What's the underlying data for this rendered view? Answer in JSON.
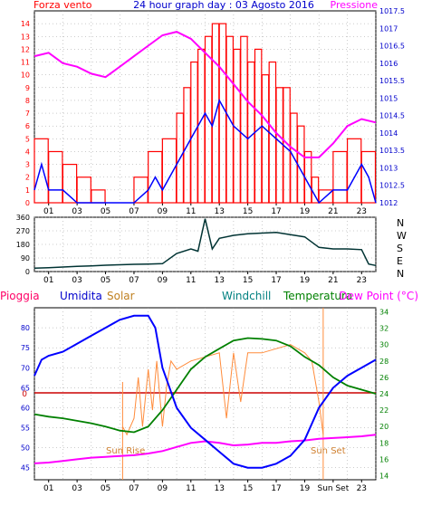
{
  "colors": {
    "wind": "#ff0000",
    "gust": "#0000ff",
    "pressure": "#ff00ff",
    "direction": "#003333",
    "humidity": "#0000ff",
    "solar": "#ff8c3c",
    "windchill": "#008080",
    "temperature": "#008000",
    "dewpoint": "#ff00ff",
    "rain": "#cc0000",
    "rain_label": "#ff0066",
    "frame": "#000000",
    "grid": "#999999",
    "axis_left": "#ff0000",
    "axis_right": "#0000cc"
  },
  "chart_data": [
    {
      "type": "bar",
      "title": "24 hour graph day : 03 Agosto 2016",
      "left_label": "Forza vento",
      "right_label": "Pressione",
      "yleft_ticks": [
        "0",
        "1",
        "2",
        "3",
        "4",
        "5",
        "6",
        "7",
        "8",
        "9",
        "10",
        "11",
        "12",
        "13",
        "14"
      ],
      "yleft_range": [
        0,
        15
      ],
      "yright_ticks": [
        "1012",
        "1012.5",
        "1013",
        "1013.5",
        "1014",
        "1014.5",
        "1015",
        "1015.5",
        "1016",
        "1016.5",
        "1017",
        "1017.5"
      ],
      "yright_range": [
        1012,
        1017.5
      ],
      "x_ticks": [
        "01",
        "03",
        "05",
        "07",
        "09",
        "11",
        "13",
        "15",
        "17",
        "19",
        "21",
        "23"
      ],
      "x_range": [
        0,
        24
      ],
      "series": [
        {
          "key": "wind_bars",
          "style": "bar",
          "x": [
            0,
            1,
            2,
            3,
            4,
            5,
            6,
            7,
            8,
            9,
            10,
            10.5,
            11,
            11.5,
            12,
            12.5,
            13,
            13.5,
            14,
            14.5,
            15,
            15.5,
            16,
            16.5,
            17,
            17.5,
            18,
            18.5,
            19,
            19.5,
            20,
            21,
            22,
            23,
            24
          ],
          "values": [
            5,
            4,
            3,
            2,
            1,
            0,
            0,
            2,
            4,
            5,
            7,
            9,
            11,
            12,
            13,
            14,
            14,
            13,
            12,
            13,
            11,
            12,
            10,
            11,
            9,
            9,
            7,
            6,
            4,
            2,
            1,
            4,
            5,
            4,
            3
          ]
        },
        {
          "key": "gust_line",
          "style": "line",
          "x": [
            0,
            0.5,
            1,
            2,
            3,
            4,
            5,
            6,
            7,
            8,
            8.5,
            9,
            10,
            11,
            12,
            12.5,
            13,
            14,
            15,
            16,
            17,
            18,
            19,
            19.5,
            20,
            21,
            22,
            23,
            23.5,
            24
          ],
          "values": [
            1,
            3,
            1,
            1,
            0,
            0,
            0,
            0,
            0,
            1,
            2,
            1,
            3,
            5,
            7,
            6,
            8,
            6,
            5,
            6,
            5,
            4,
            2,
            1,
            0,
            1,
            1,
            3,
            2,
            0
          ]
        },
        {
          "key": "pressure_line",
          "style": "line",
          "x": [
            0,
            1,
            2,
            3,
            4,
            5,
            6,
            7,
            8,
            9,
            10,
            11,
            12,
            13,
            14,
            15,
            16,
            17,
            18,
            19,
            20,
            21,
            22,
            23,
            24
          ],
          "values": [
            1016.2,
            1016.3,
            1016.0,
            1015.9,
            1015.7,
            1015.6,
            1015.9,
            1016.2,
            1016.5,
            1016.8,
            1016.9,
            1016.7,
            1016.3,
            1015.9,
            1015.4,
            1014.9,
            1014.5,
            1014.0,
            1013.6,
            1013.3,
            1013.3,
            1013.7,
            1014.2,
            1014.4,
            1014.3
          ]
        }
      ]
    },
    {
      "type": "line",
      "right_labels": [
        "N",
        "W",
        "S",
        "E",
        "N"
      ],
      "y_ticks": [
        "360",
        "270",
        "180",
        "90",
        "0"
      ],
      "y_range": [
        0,
        360
      ],
      "x_ticks": [
        "01",
        "03",
        "05",
        "07",
        "09",
        "11",
        "13",
        "15",
        "17",
        "19",
        "21",
        "23"
      ],
      "x_range": [
        0,
        24
      ],
      "series": [
        {
          "key": "wind_direction",
          "x": [
            0,
            1,
            2,
            3,
            4,
            5,
            6,
            7,
            8,
            9,
            10,
            11,
            11.5,
            12,
            12.5,
            13,
            14,
            15,
            16,
            17,
            18,
            19,
            20,
            21,
            22,
            23,
            23.5,
            24
          ],
          "values": [
            22,
            25,
            30,
            35,
            38,
            42,
            45,
            48,
            50,
            52,
            120,
            150,
            135,
            350,
            150,
            220,
            240,
            250,
            255,
            260,
            245,
            230,
            160,
            150,
            150,
            145,
            50,
            40
          ]
        }
      ]
    },
    {
      "type": "line",
      "labels": {
        "rain": "Pioggia",
        "humidity": "Umidita",
        "solar": "Solar",
        "windchill": "Windchill",
        "temperature": "Temperatura",
        "dewpoint": "Dew Point (°C)"
      },
      "yleft_ticks": [
        "45",
        "50",
        "55",
        "60",
        "65",
        "70",
        "75",
        "80"
      ],
      "yleft_range": [
        42,
        85
      ],
      "yright_ticks": [
        "14",
        "16",
        "18",
        "20",
        "22",
        "24",
        "26",
        "28",
        "30",
        "32",
        "34"
      ],
      "yright_range": [
        13.5,
        34.5
      ],
      "rain_value": "0",
      "x_ticks": [
        "01",
        "03",
        "05",
        "07",
        "09",
        "11",
        "13",
        "15",
        "17",
        "19",
        "Sun Set",
        "23"
      ],
      "x_range": [
        0,
        24
      ],
      "annotations": {
        "sun_rise": "Sun Rise",
        "sun_set": "Sun Set",
        "sun_rise_hour": 6.2,
        "sun_set_hour": 20.3
      },
      "series": [
        {
          "key": "humidity",
          "x": [
            0,
            0.5,
            1,
            2,
            3,
            4,
            5,
            6,
            7,
            8,
            8.5,
            9,
            10,
            11,
            12,
            13,
            14,
            15,
            16,
            17,
            18,
            19,
            20,
            21,
            22,
            23,
            24
          ],
          "values": [
            68,
            72,
            73,
            74,
            76,
            78,
            80,
            82,
            83,
            83,
            80,
            70,
            60,
            55,
            52,
            49,
            46,
            45,
            45,
            46,
            48,
            52,
            60,
            65,
            68,
            70,
            72
          ]
        },
        {
          "key": "temperature",
          "x": [
            0,
            1,
            2,
            3,
            4,
            5,
            6,
            7,
            8,
            9,
            10,
            11,
            12,
            13,
            14,
            15,
            16,
            17,
            18,
            19,
            20,
            21,
            22,
            23,
            24
          ],
          "values": [
            21.5,
            21.2,
            21,
            20.7,
            20.4,
            20,
            19.5,
            19.3,
            20,
            22,
            24.5,
            27,
            28.5,
            29.5,
            30.5,
            30.8,
            30.7,
            30.5,
            29.8,
            28.5,
            27.5,
            26,
            25,
            24.5,
            24
          ]
        },
        {
          "key": "dewpoint",
          "x": [
            0,
            1,
            2,
            3,
            4,
            5,
            6,
            7,
            8,
            9,
            10,
            11,
            12,
            13,
            14,
            15,
            16,
            17,
            18,
            19,
            20,
            21,
            22,
            23,
            24
          ],
          "values": [
            15.5,
            15.6,
            15.8,
            16,
            16.2,
            16.3,
            16.4,
            16.5,
            16.7,
            17,
            17.5,
            18,
            18.2,
            18,
            17.7,
            17.8,
            18,
            18,
            18.2,
            18.3,
            18.5,
            18.6,
            18.7,
            18.8,
            19
          ]
        },
        {
          "key": "windchill",
          "x": [
            0,
            1,
            2,
            3,
            4,
            5,
            6,
            7,
            8,
            9,
            10,
            11,
            12,
            13,
            14,
            15,
            16,
            17,
            18,
            19,
            20,
            21,
            22,
            23,
            24
          ],
          "values": [
            21.5,
            21.2,
            21,
            20.7,
            20.4,
            20,
            19.5,
            19.3,
            20,
            22,
            24.5,
            27,
            28.5,
            29.5,
            30.5,
            30.8,
            30.7,
            30.5,
            29.8,
            28.5,
            27.5,
            26,
            25,
            24.5,
            24
          ]
        },
        {
          "key": "solar",
          "x": [
            6.2,
            6.5,
            7,
            7.3,
            7.6,
            8,
            8.3,
            8.6,
            9,
            9.3,
            9.6,
            10,
            11,
            12,
            13,
            13.5,
            14,
            14.5,
            15,
            16,
            17,
            18,
            19,
            19.5,
            20,
            20.3
          ],
          "values": [
            20,
            19,
            21,
            26,
            20,
            27,
            22,
            28,
            20,
            25,
            28,
            27,
            28,
            28.5,
            29,
            21,
            29,
            23,
            29,
            29,
            29.5,
            30,
            29,
            28,
            23,
            19
          ]
        }
      ]
    }
  ]
}
